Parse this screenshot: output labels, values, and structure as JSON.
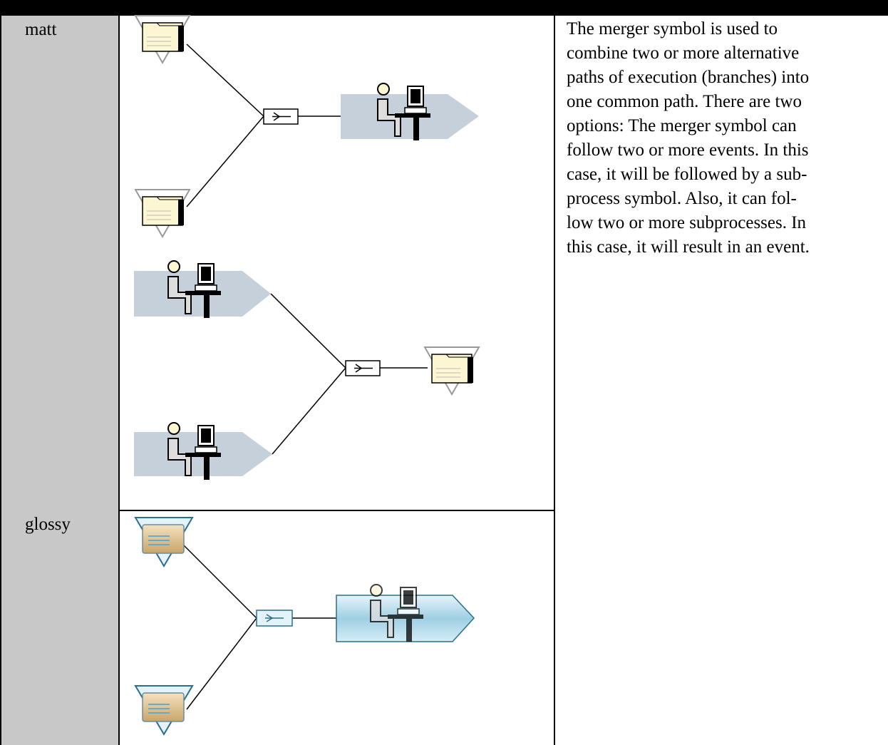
{
  "table": {
    "rows": [
      {
        "label": "matt"
      },
      {
        "label": "glossy"
      }
    ]
  },
  "description": {
    "lines": [
      "The merger symbol is used to",
      "combine two or more alternative",
      "paths of execution (branches) into",
      "one common path. There are two",
      "options: The merger symbol can",
      "follow two or more events. In this",
      "case, it will be followed by a sub-",
      "process symbol. Also, it can fol-",
      "low two or more subprocesses. In",
      "this case, it will result in an event."
    ]
  }
}
